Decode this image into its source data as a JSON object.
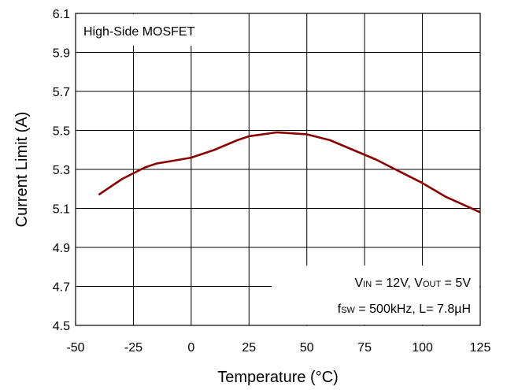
{
  "chart_data": {
    "type": "line",
    "title": "",
    "xlabel": "Temperature (°C)",
    "ylabel": "Current Limit (A)",
    "xlim": [
      -50,
      125
    ],
    "ylim": [
      4.5,
      6.1
    ],
    "xticks": [
      -50,
      -25,
      0,
      25,
      50,
      75,
      100,
      125
    ],
    "yticks": [
      4.5,
      4.7,
      4.9,
      5.1,
      5.3,
      5.5,
      5.7,
      5.9,
      6.1
    ],
    "xtick_labels": [
      "-50",
      "-25",
      "0",
      "25",
      "50",
      "75",
      "100",
      "125"
    ],
    "ytick_labels": [
      "4.5",
      "4.7",
      "4.9",
      "5.1",
      "5.3",
      "5.5",
      "5.7",
      "5.9",
      "6.1"
    ],
    "grid": true,
    "legend_box": "High-Side MOSFET",
    "conditions": {
      "line1": {
        "prefix": "V",
        "sub1": "IN",
        "mid": " = 12V, V",
        "sub2": "OUT",
        "suffix": " = 5V"
      },
      "line2": {
        "prefix": "f",
        "sub1": "SW",
        "rest": " = 500kHz, L= 7.8µH"
      }
    },
    "series": [
      {
        "color": "#8B0000",
        "x": [
          -40,
          -30,
          -20,
          -15,
          -10,
          0,
          10,
          20,
          25,
          37,
          50,
          60,
          70,
          80,
          90,
          100,
          110,
          125
        ],
        "y": [
          5.17,
          5.25,
          5.31,
          5.33,
          5.34,
          5.36,
          5.4,
          5.45,
          5.47,
          5.49,
          5.48,
          5.45,
          5.4,
          5.35,
          5.29,
          5.23,
          5.16,
          5.08
        ]
      }
    ]
  }
}
